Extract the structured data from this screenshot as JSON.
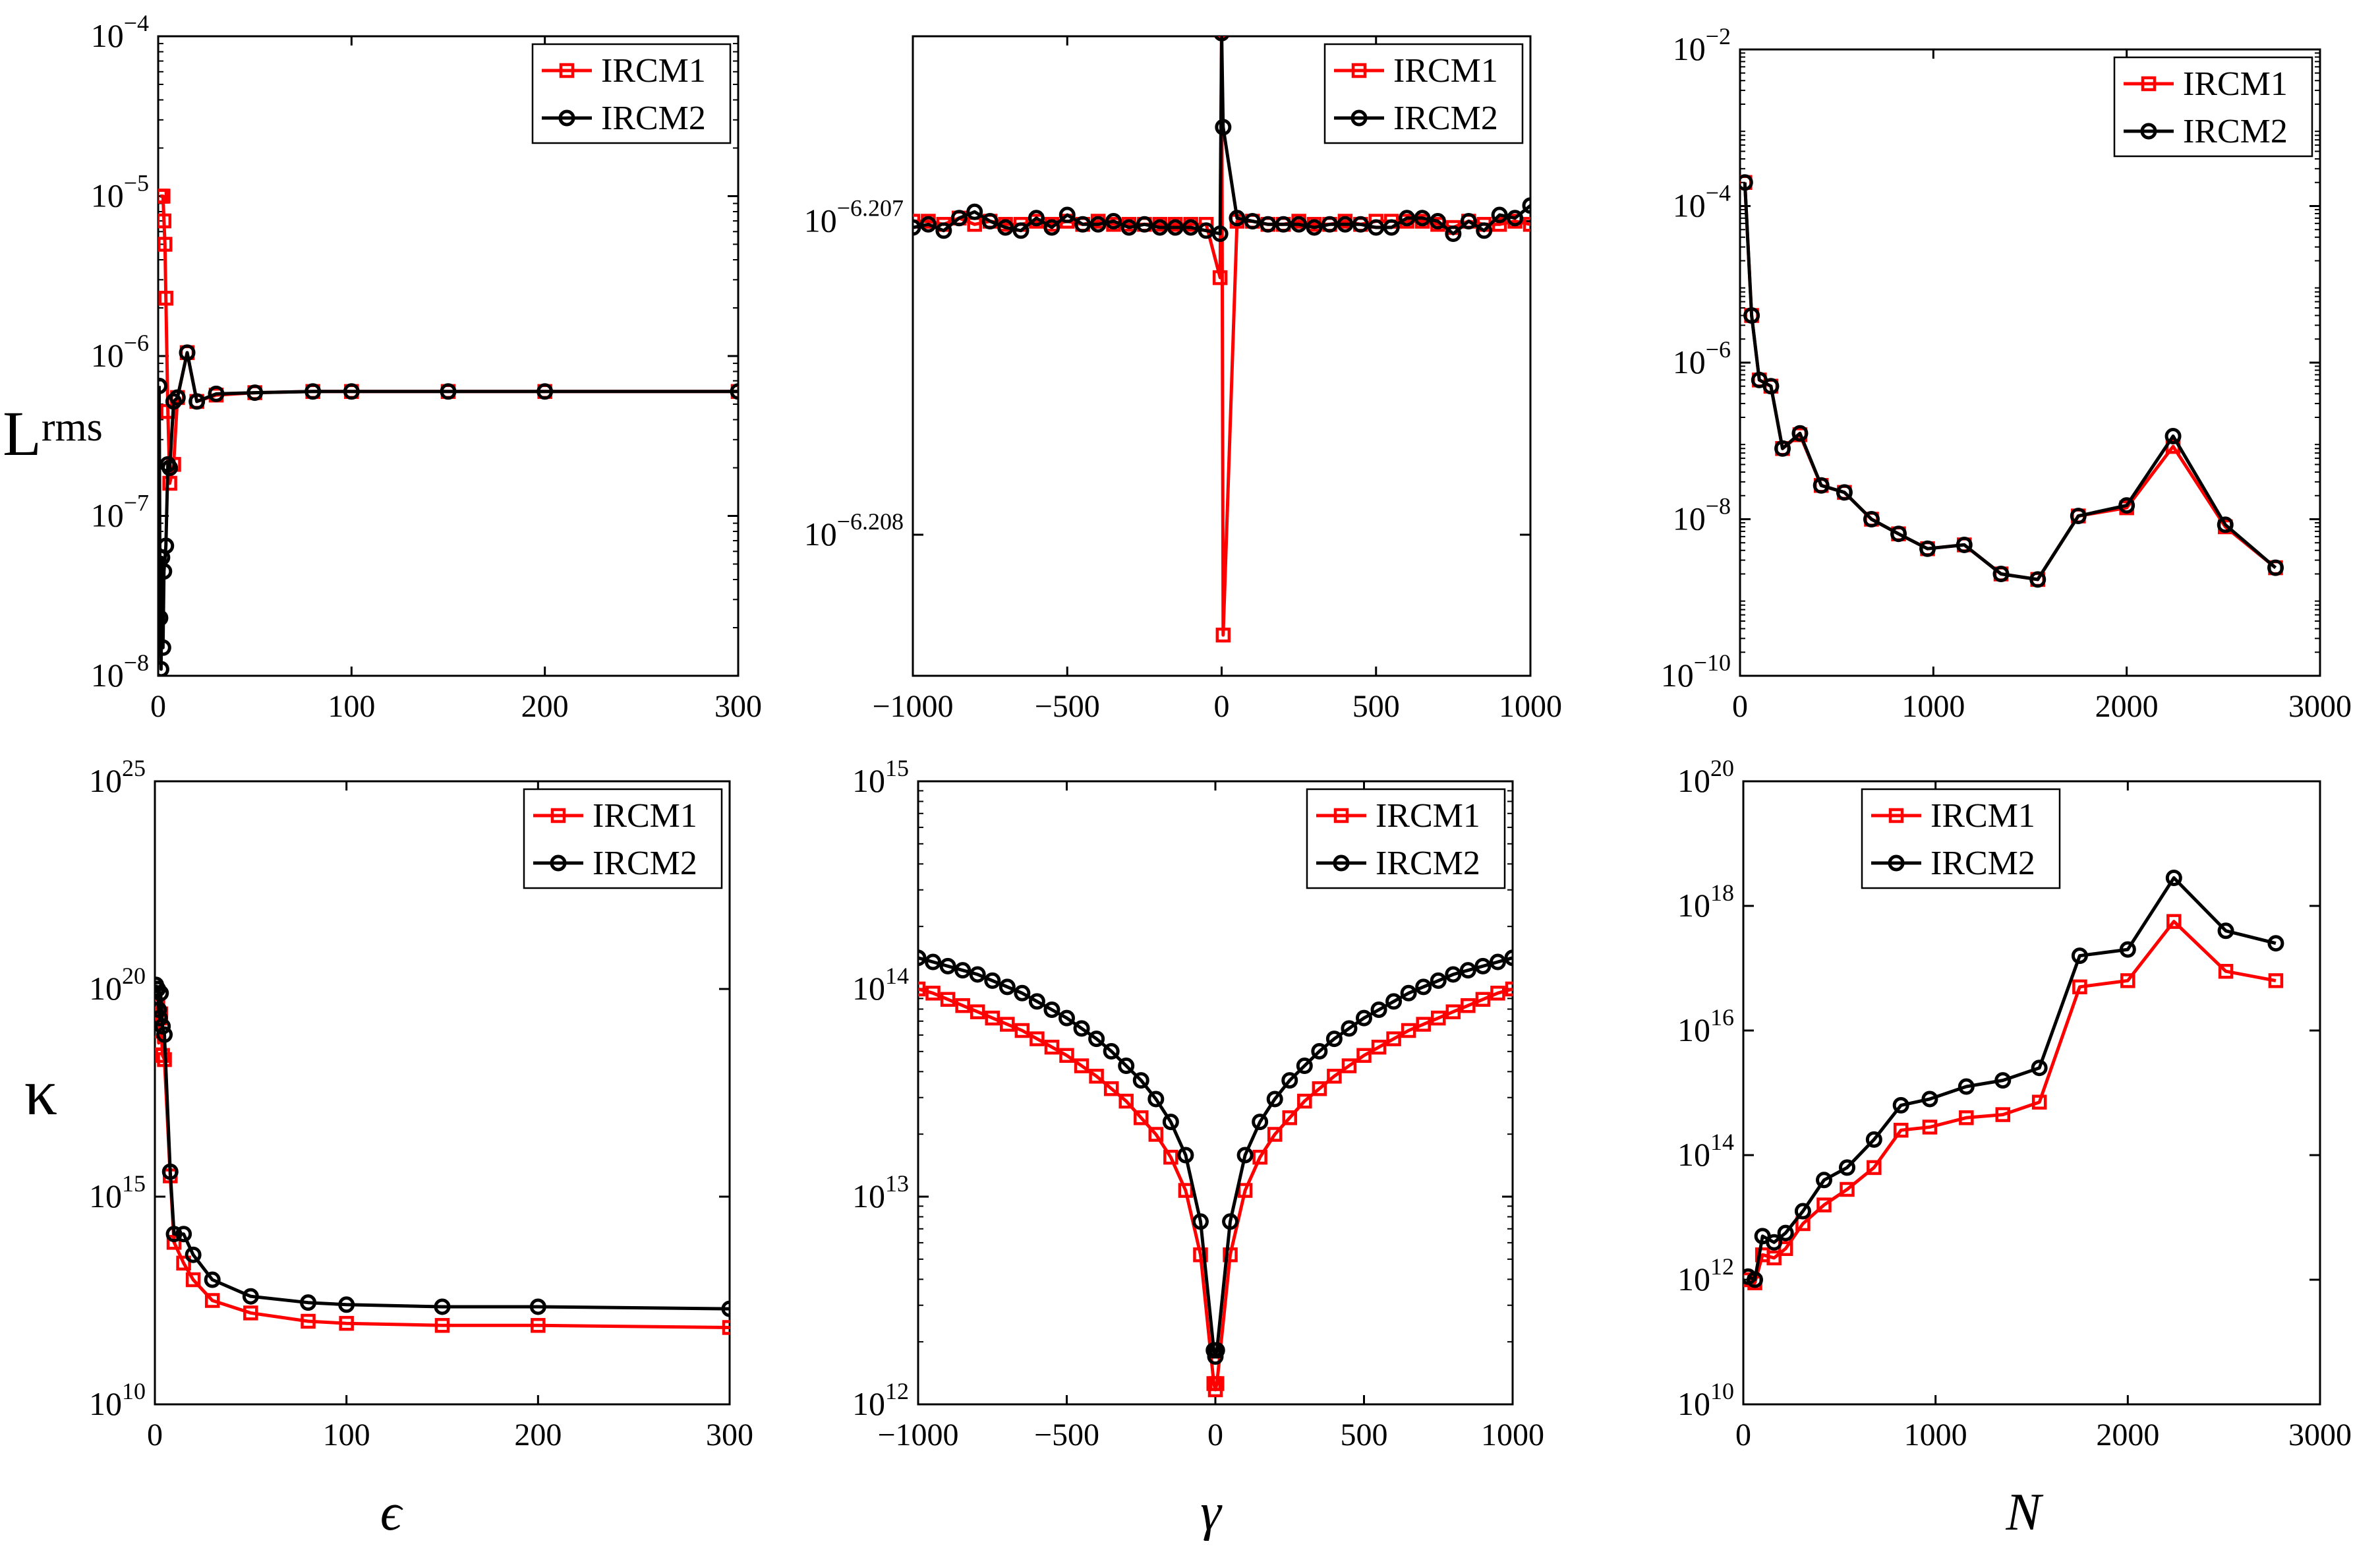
{
  "colors": {
    "IRCM1": "#ff0000",
    "IRCM2": "#000000",
    "axis": "#000000",
    "background": "#ffffff"
  },
  "ylabels": {
    "row1": "L",
    "row1_sub": "rms",
    "row2": "κ"
  },
  "xlabels": {
    "col1": "ϵ",
    "col2": "γ",
    "col3": "N"
  },
  "chart_data": [
    {
      "id": "p11",
      "type": "line",
      "yscale": "log",
      "title": "",
      "xlabel": "ϵ",
      "ylabel": "L_rms",
      "xlim": [
        0,
        300
      ],
      "ylim_log10": [
        -8,
        -4
      ],
      "xticks": [
        0,
        100,
        200,
        300
      ],
      "xtick_labels": [
        "0",
        "100",
        "200",
        "300"
      ],
      "yticks_log10": [
        -8,
        -7,
        -6,
        -5,
        -4
      ],
      "ytick_labels": [
        {
          "base": "10",
          "exp": "−8"
        },
        {
          "base": "10",
          "exp": "−7"
        },
        {
          "base": "10",
          "exp": "−6"
        },
        {
          "base": "10",
          "exp": "−5"
        },
        {
          "base": "10",
          "exp": "−4"
        }
      ],
      "legend": {
        "position": "top-right",
        "entries": [
          "IRCM1",
          "IRCM2"
        ]
      },
      "series": [
        {
          "name": "IRCM1",
          "x": [
            1,
            1.5,
            2,
            2.5,
            3,
            3.5,
            4,
            5,
            6,
            8,
            10,
            15,
            20,
            30,
            50,
            80,
            100,
            150,
            200,
            300
          ],
          "y": [
            1e-05,
            1e-05,
            1e-05,
            1e-05,
            7e-06,
            5e-06,
            2.3e-06,
            4.5e-07,
            1.6e-07,
            2.1e-07,
            5.5e-07,
            1.05e-06,
            5.2e-07,
            5.7e-07,
            5.9e-07,
            6e-07,
            6e-07,
            6e-07,
            6e-07,
            6e-07
          ]
        },
        {
          "name": "IRCM2",
          "x": [
            0.5,
            1,
            1.5,
            2,
            2.5,
            3,
            4,
            5,
            6,
            8,
            10,
            15,
            20,
            30,
            50,
            80,
            100,
            150,
            200,
            300
          ],
          "y": [
            6.5e-07,
            2.3e-08,
            1.1e-08,
            5.5e-08,
            1.5e-08,
            4.5e-08,
            6.5e-08,
            2.1e-07,
            2e-07,
            5.2e-07,
            5.5e-07,
            1.05e-06,
            5.2e-07,
            5.8e-07,
            5.9e-07,
            6e-07,
            6e-07,
            6e-07,
            6e-07,
            6e-07
          ]
        }
      ]
    },
    {
      "id": "p12",
      "type": "line",
      "yscale": "log",
      "title": "",
      "xlabel": "γ",
      "ylabel": "",
      "xlim": [
        -1000,
        1000
      ],
      "ylim_log10": [
        -6.20845,
        -6.20641
      ],
      "xticks": [
        -1000,
        -500,
        0,
        500,
        1000
      ],
      "xtick_labels": [
        "−1000",
        "−500",
        "0",
        "500",
        "1000"
      ],
      "yticks_log10": [
        -6.208,
        -6.207
      ],
      "ytick_labels": [
        {
          "base": "10",
          "exp": "−6.208"
        },
        {
          "base": "10",
          "exp": "−6.207"
        }
      ],
      "legend": {
        "position": "top-right",
        "entries": [
          "IRCM1",
          "IRCM2"
        ]
      },
      "series": [
        {
          "name": "IRCM1",
          "x": [
            -1000,
            -950,
            -900,
            -850,
            -800,
            -750,
            -700,
            -650,
            -600,
            -550,
            -500,
            -450,
            -400,
            -350,
            -300,
            -250,
            -200,
            -150,
            -100,
            -50,
            -5,
            0,
            5,
            50,
            100,
            150,
            200,
            250,
            300,
            350,
            400,
            450,
            500,
            550,
            600,
            650,
            700,
            750,
            800,
            850,
            900,
            950,
            1000
          ],
          "y_log10": [
            -6.207,
            -6.207,
            -6.20701,
            -6.20699,
            -6.20701,
            -6.207,
            -6.20701,
            -6.20701,
            -6.207,
            -6.20701,
            -6.207,
            -6.20701,
            -6.207,
            -6.20701,
            -6.20701,
            -6.20701,
            -6.20701,
            -6.20701,
            -6.20701,
            -6.20701,
            -6.20718,
            -6.20639,
            -6.20832,
            -6.207,
            -6.207,
            -6.20701,
            -6.20701,
            -6.207,
            -6.20701,
            -6.20701,
            -6.207,
            -6.20701,
            -6.207,
            -6.207,
            -6.207,
            -6.207,
            -6.20701,
            -6.20702,
            -6.207,
            -6.20701,
            -6.20701,
            -6.207,
            -6.20701
          ]
        },
        {
          "name": "IRCM2",
          "x": [
            -1000,
            -950,
            -900,
            -850,
            -800,
            -750,
            -700,
            -650,
            -600,
            -550,
            -500,
            -450,
            -400,
            -350,
            -300,
            -250,
            -200,
            -150,
            -100,
            -50,
            -5,
            0,
            5,
            50,
            100,
            150,
            200,
            250,
            300,
            350,
            400,
            450,
            500,
            550,
            600,
            650,
            700,
            750,
            800,
            850,
            900,
            950,
            1000
          ],
          "y_log10": [
            -6.20702,
            -6.20701,
            -6.20703,
            -6.20699,
            -6.20697,
            -6.207,
            -6.20702,
            -6.20703,
            -6.20699,
            -6.20702,
            -6.20698,
            -6.20701,
            -6.20701,
            -6.207,
            -6.20702,
            -6.20701,
            -6.20702,
            -6.20702,
            -6.20702,
            -6.20703,
            -6.20704,
            -6.2064,
            -6.2067,
            -6.20699,
            -6.207,
            -6.20701,
            -6.20701,
            -6.20701,
            -6.20702,
            -6.20701,
            -6.20701,
            -6.20701,
            -6.20702,
            -6.20702,
            -6.20699,
            -6.20699,
            -6.207,
            -6.20704,
            -6.207,
            -6.20703,
            -6.20698,
            -6.20699,
            -6.20695
          ]
        }
      ]
    },
    {
      "id": "p13",
      "type": "line",
      "yscale": "log",
      "title": "",
      "xlabel": "N",
      "ylabel": "",
      "xlim": [
        0,
        3000
      ],
      "ylim_log10": [
        -10,
        -2
      ],
      "xticks": [
        0,
        1000,
        2000,
        3000
      ],
      "xtick_labels": [
        "0",
        "1000",
        "2000",
        "3000"
      ],
      "yticks_log10": [
        -10,
        -8,
        -6,
        -4,
        -2
      ],
      "ytick_labels": [
        {
          "base": "10",
          "exp": "−10"
        },
        {
          "base": "10",
          "exp": "−8"
        },
        {
          "base": "10",
          "exp": "−6"
        },
        {
          "base": "10",
          "exp": "−4"
        },
        {
          "base": "10",
          "exp": "−2"
        }
      ],
      "legend": {
        "position": "top-right",
        "entries": [
          "IRCM1",
          "IRCM2"
        ]
      },
      "series": [
        {
          "name": "IRCM1",
          "x": [
            25,
            60,
            100,
            160,
            220,
            310,
            420,
            540,
            680,
            820,
            970,
            1160,
            1350,
            1540,
            1750,
            2000,
            2240,
            2510,
            2770
          ],
          "y": [
            0.0002,
            4e-06,
            6e-07,
            5e-07,
            8e-08,
            1.2e-07,
            2.7e-08,
            2.2e-08,
            1e-08,
            6.5e-09,
            4.2e-09,
            4.7e-09,
            2e-09,
            1.7e-09,
            1.1e-08,
            1.4e-08,
            8.5e-08,
            8e-09,
            2.4e-09
          ]
        },
        {
          "name": "IRCM2",
          "x": [
            25,
            60,
            100,
            160,
            220,
            310,
            420,
            540,
            680,
            820,
            970,
            1160,
            1350,
            1540,
            1750,
            2000,
            2240,
            2510,
            2770
          ],
          "y": [
            0.0002,
            4e-06,
            6e-07,
            5e-07,
            8e-08,
            1.25e-07,
            2.7e-08,
            2.2e-08,
            1e-08,
            6.5e-09,
            4.2e-09,
            4.7e-09,
            2e-09,
            1.7e-09,
            1.1e-08,
            1.5e-08,
            1.15e-07,
            8.5e-09,
            2.4e-09
          ]
        }
      ]
    },
    {
      "id": "p21",
      "type": "line",
      "yscale": "log",
      "title": "",
      "xlabel": "ϵ",
      "ylabel": "κ",
      "xlim": [
        0,
        300
      ],
      "ylim_log10": [
        10,
        25
      ],
      "xticks": [
        0,
        100,
        200,
        300
      ],
      "xtick_labels": [
        "0",
        "100",
        "200",
        "300"
      ],
      "yticks_log10": [
        10,
        15,
        20,
        25
      ],
      "ytick_labels": [
        {
          "base": "10",
          "exp": "10"
        },
        {
          "base": "10",
          "exp": "15"
        },
        {
          "base": "10",
          "exp": "20"
        },
        {
          "base": "10",
          "exp": "25"
        }
      ],
      "legend": {
        "position": "top-right",
        "entries": [
          "IRCM1",
          "IRCM2"
        ]
      },
      "series": [
        {
          "name": "IRCM1",
          "x": [
            0.5,
            1,
            1.5,
            2,
            2.5,
            3,
            4,
            5,
            8,
            10,
            15,
            20,
            30,
            50,
            80,
            100,
            150,
            200,
            300
          ],
          "y_log10": [
            19.2,
            19.5,
            19.6,
            18.7,
            19.3,
            19.4,
            18.4,
            18.3,
            15.5,
            13.9,
            13.4,
            13.0,
            12.5,
            12.2,
            12.0,
            11.95,
            11.9,
            11.9,
            11.85
          ]
        },
        {
          "name": "IRCM2",
          "x": [
            0.5,
            1,
            1.5,
            2,
            2.5,
            3,
            4,
            5,
            8,
            10,
            15,
            20,
            30,
            50,
            80,
            100,
            150,
            200,
            300
          ],
          "y_log10": [
            20.1,
            20.0,
            20.0,
            19.5,
            19.3,
            19.9,
            19.1,
            18.9,
            15.6,
            14.1,
            14.1,
            13.6,
            13.0,
            12.6,
            12.45,
            12.4,
            12.35,
            12.35,
            12.3
          ]
        }
      ]
    },
    {
      "id": "p22",
      "type": "line",
      "yscale": "log",
      "title": "",
      "xlabel": "γ",
      "ylabel": "",
      "xlim": [
        -1000,
        1000
      ],
      "ylim_log10": [
        12,
        15
      ],
      "xticks": [
        -1000,
        -500,
        0,
        500,
        1000
      ],
      "xtick_labels": [
        "−1000",
        "−500",
        "0",
        "500",
        "1000"
      ],
      "yticks_log10": [
        12,
        13,
        14,
        15
      ],
      "ytick_labels": [
        {
          "base": "10",
          "exp": "12"
        },
        {
          "base": "10",
          "exp": "13"
        },
        {
          "base": "10",
          "exp": "14"
        },
        {
          "base": "10",
          "exp": "15"
        }
      ],
      "legend": {
        "position": "top-right",
        "entries": [
          "IRCM1",
          "IRCM2"
        ]
      },
      "series": [
        {
          "name": "IRCM1",
          "x": [
            -1000,
            -950,
            -900,
            -850,
            -800,
            -750,
            -700,
            -650,
            -600,
            -550,
            -500,
            -450,
            -400,
            -350,
            -300,
            -250,
            -200,
            -150,
            -100,
            -50,
            -5,
            0,
            5,
            50,
            100,
            150,
            200,
            250,
            300,
            350,
            400,
            450,
            500,
            550,
            600,
            650,
            700,
            750,
            800,
            850,
            900,
            950,
            1000
          ],
          "y_log10": [
            14.0,
            13.98,
            13.95,
            13.92,
            13.89,
            13.86,
            13.83,
            13.8,
            13.76,
            13.72,
            13.68,
            13.63,
            13.58,
            13.52,
            13.46,
            13.38,
            13.3,
            13.19,
            13.03,
            12.72,
            12.1,
            12.07,
            12.1,
            12.72,
            13.03,
            13.19,
            13.3,
            13.38,
            13.46,
            13.52,
            13.58,
            13.63,
            13.68,
            13.72,
            13.76,
            13.8,
            13.83,
            13.86,
            13.89,
            13.92,
            13.95,
            13.98,
            14.0
          ]
        },
        {
          "name": "IRCM2",
          "x": [
            -1000,
            -950,
            -900,
            -850,
            -800,
            -750,
            -700,
            -650,
            -600,
            -550,
            -500,
            -450,
            -400,
            -350,
            -300,
            -250,
            -200,
            -150,
            -100,
            -50,
            -5,
            0,
            5,
            50,
            100,
            150,
            200,
            250,
            300,
            350,
            400,
            450,
            500,
            550,
            600,
            650,
            700,
            750,
            800,
            850,
            900,
            950,
            1000
          ],
          "y_log10": [
            14.15,
            14.13,
            14.11,
            14.09,
            14.07,
            14.04,
            14.01,
            13.98,
            13.94,
            13.9,
            13.86,
            13.81,
            13.76,
            13.7,
            13.63,
            13.56,
            13.47,
            13.36,
            13.2,
            12.88,
            12.26,
            12.23,
            12.26,
            12.88,
            13.2,
            13.36,
            13.47,
            13.56,
            13.63,
            13.7,
            13.76,
            13.81,
            13.86,
            13.9,
            13.94,
            13.98,
            14.01,
            14.04,
            14.07,
            14.09,
            14.11,
            14.13,
            14.15
          ]
        }
      ]
    },
    {
      "id": "p23",
      "type": "line",
      "yscale": "log",
      "title": "",
      "xlabel": "N",
      "ylabel": "",
      "xlim": [
        0,
        3000
      ],
      "ylim_log10": [
        10,
        20
      ],
      "xticks": [
        0,
        1000,
        2000,
        3000
      ],
      "xtick_labels": [
        "0",
        "1000",
        "2000",
        "3000"
      ],
      "yticks_log10": [
        10,
        12,
        14,
        16,
        18,
        20
      ],
      "ytick_labels": [
        {
          "base": "10",
          "exp": "10"
        },
        {
          "base": "10",
          "exp": "12"
        },
        {
          "base": "10",
          "exp": "14"
        },
        {
          "base": "10",
          "exp": "16"
        },
        {
          "base": "10",
          "exp": "18"
        },
        {
          "base": "10",
          "exp": "20"
        }
      ],
      "legend": {
        "position": "top-left",
        "entries": [
          "IRCM1",
          "IRCM2"
        ]
      },
      "series": [
        {
          "name": "IRCM1",
          "x": [
            25,
            60,
            100,
            160,
            220,
            310,
            420,
            540,
            680,
            820,
            970,
            1160,
            1350,
            1540,
            1750,
            2000,
            2240,
            2510,
            2770
          ],
          "y_log10": [
            12.0,
            11.95,
            12.4,
            12.35,
            12.5,
            12.9,
            13.2,
            13.45,
            13.8,
            14.4,
            14.45,
            14.6,
            14.65,
            14.85,
            16.7,
            16.8,
            17.75,
            16.95,
            16.8
          ]
        },
        {
          "name": "IRCM2",
          "x": [
            25,
            60,
            100,
            160,
            220,
            310,
            420,
            540,
            680,
            820,
            970,
            1160,
            1350,
            1540,
            1750,
            2000,
            2240,
            2510,
            2770
          ],
          "y_log10": [
            12.05,
            12.0,
            12.7,
            12.6,
            12.75,
            13.1,
            13.6,
            13.8,
            14.25,
            14.8,
            14.9,
            15.1,
            15.2,
            15.4,
            17.2,
            17.3,
            18.45,
            17.6,
            17.4
          ]
        }
      ]
    }
  ]
}
